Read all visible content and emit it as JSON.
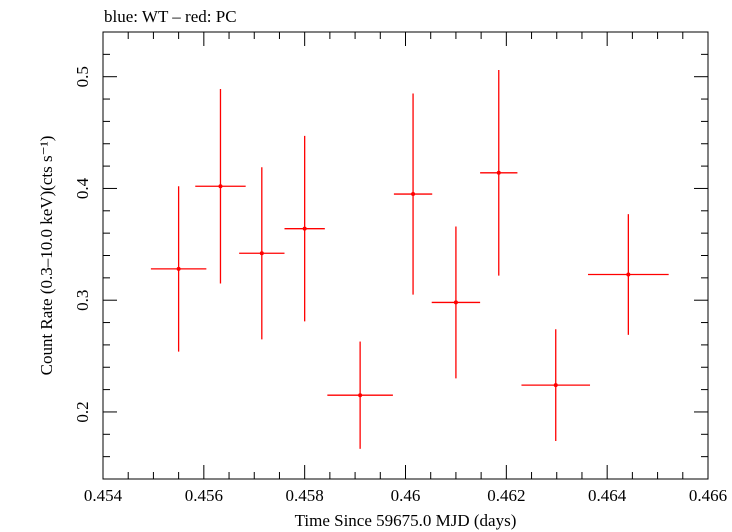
{
  "chart_data": {
    "type": "scatter",
    "title": "blue: WT – red: PC",
    "xlabel": "Time Since 59675.0 MJD (days)",
    "ylabel": "Count Rate (0.3–10.0 keV)(cts s⁻¹)",
    "xlim": [
      0.454,
      0.466
    ],
    "ylim": [
      0.14,
      0.54
    ],
    "x_ticks": [
      "0.454",
      "0.456",
      "0.458",
      "0.46",
      "0.462",
      "0.464",
      "0.466"
    ],
    "y_ticks": [
      "0.2",
      "0.3",
      "0.4",
      "0.5"
    ],
    "grid": false,
    "series": [
      {
        "color": "#ff0000",
        "points": [
          {
            "x": 0.4555,
            "xerr": 0.00055,
            "y": 0.328,
            "yerr": 0.074
          },
          {
            "x": 0.45633,
            "xerr": 0.0005,
            "y": 0.402,
            "yerr": 0.087
          },
          {
            "x": 0.45715,
            "xerr": 0.00045,
            "y": 0.342,
            "yerr": 0.077
          },
          {
            "x": 0.458,
            "xerr": 0.0004,
            "y": 0.364,
            "yerr": 0.083
          },
          {
            "x": 0.4591,
            "xerr": 0.00065,
            "y": 0.215,
            "yerr": 0.048
          },
          {
            "x": 0.46015,
            "xerr": 0.00038,
            "y": 0.395,
            "yerr": 0.09
          },
          {
            "x": 0.461,
            "xerr": 0.00048,
            "y": 0.298,
            "yerr": 0.068
          },
          {
            "x": 0.46185,
            "xerr": 0.00037,
            "y": 0.414,
            "yerr": 0.092
          },
          {
            "x": 0.46298,
            "xerr": 0.00068,
            "y": 0.224,
            "yerr": 0.05
          },
          {
            "x": 0.46442,
            "xerr": 0.0008,
            "y": 0.323,
            "yerr": 0.054
          }
        ]
      }
    ]
  }
}
